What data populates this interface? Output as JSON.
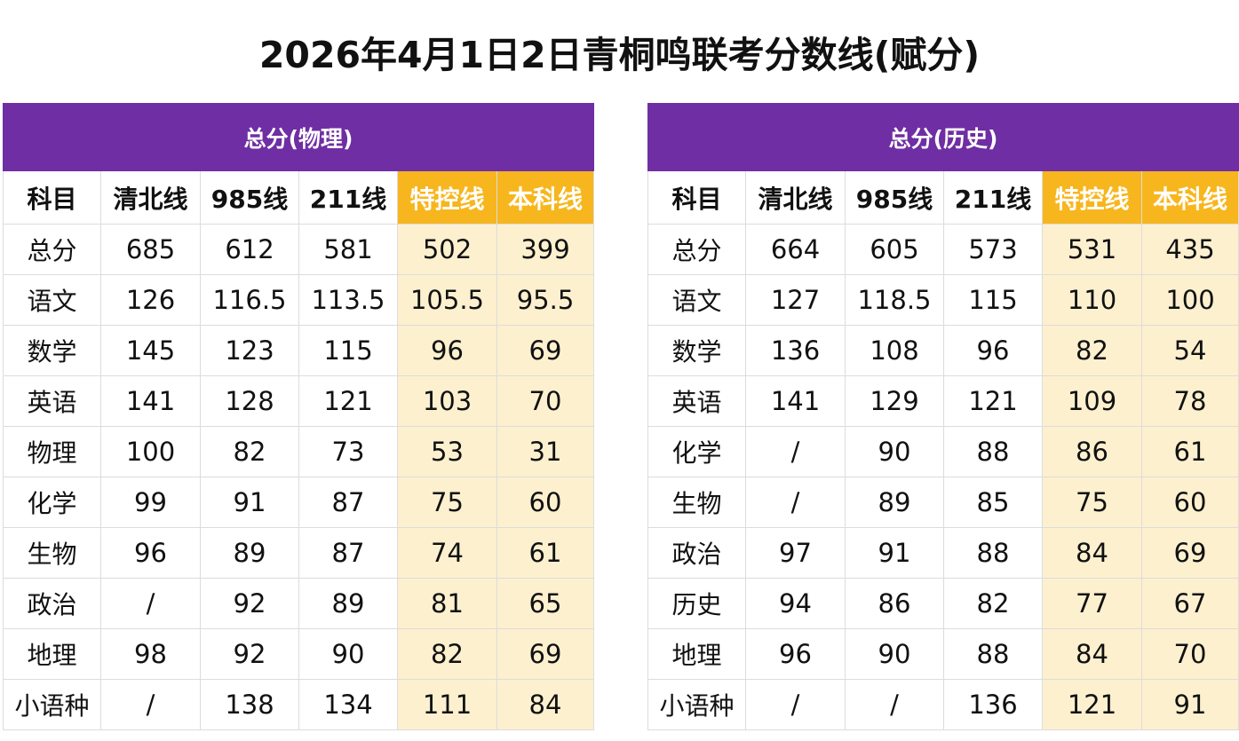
{
  "title": "2026年4月1日2日青桐鸣联考分数线(赋分)",
  "colors": {
    "group_header": "#6f2ea3",
    "highlight_header": "#f7b61d",
    "highlight_cell": "#fdf0cf"
  },
  "tables": [
    {
      "group": "总分(物理)",
      "headers": [
        "科目",
        "清北线",
        "985线",
        "211线",
        "特控线",
        "本科线"
      ],
      "rows": [
        [
          "总分",
          "685",
          "612",
          "581",
          "502",
          "399"
        ],
        [
          "语文",
          "126",
          "116.5",
          "113.5",
          "105.5",
          "95.5"
        ],
        [
          "数学",
          "145",
          "123",
          "115",
          "96",
          "69"
        ],
        [
          "英语",
          "141",
          "128",
          "121",
          "103",
          "70"
        ],
        [
          "物理",
          "100",
          "82",
          "73",
          "53",
          "31"
        ],
        [
          "化学",
          "99",
          "91",
          "87",
          "75",
          "60"
        ],
        [
          "生物",
          "96",
          "89",
          "87",
          "74",
          "61"
        ],
        [
          "政治",
          "/",
          "92",
          "89",
          "81",
          "65"
        ],
        [
          "地理",
          "98",
          "92",
          "90",
          "82",
          "69"
        ],
        [
          "小语种",
          "/",
          "138",
          "134",
          "111",
          "84"
        ]
      ]
    },
    {
      "group": "总分(历史)",
      "headers": [
        "科目",
        "清北线",
        "985线",
        "211线",
        "特控线",
        "本科线"
      ],
      "rows": [
        [
          "总分",
          "664",
          "605",
          "573",
          "531",
          "435"
        ],
        [
          "语文",
          "127",
          "118.5",
          "115",
          "110",
          "100"
        ],
        [
          "数学",
          "136",
          "108",
          "96",
          "82",
          "54"
        ],
        [
          "英语",
          "141",
          "129",
          "121",
          "109",
          "78"
        ],
        [
          "化学",
          "/",
          "90",
          "88",
          "86",
          "61"
        ],
        [
          "生物",
          "/",
          "89",
          "85",
          "75",
          "60"
        ],
        [
          "政治",
          "97",
          "91",
          "88",
          "84",
          "69"
        ],
        [
          "历史",
          "94",
          "86",
          "82",
          "77",
          "67"
        ],
        [
          "地理",
          "96",
          "90",
          "88",
          "84",
          "70"
        ],
        [
          "小语种",
          "/",
          "/",
          "136",
          "121",
          "91"
        ]
      ]
    }
  ]
}
